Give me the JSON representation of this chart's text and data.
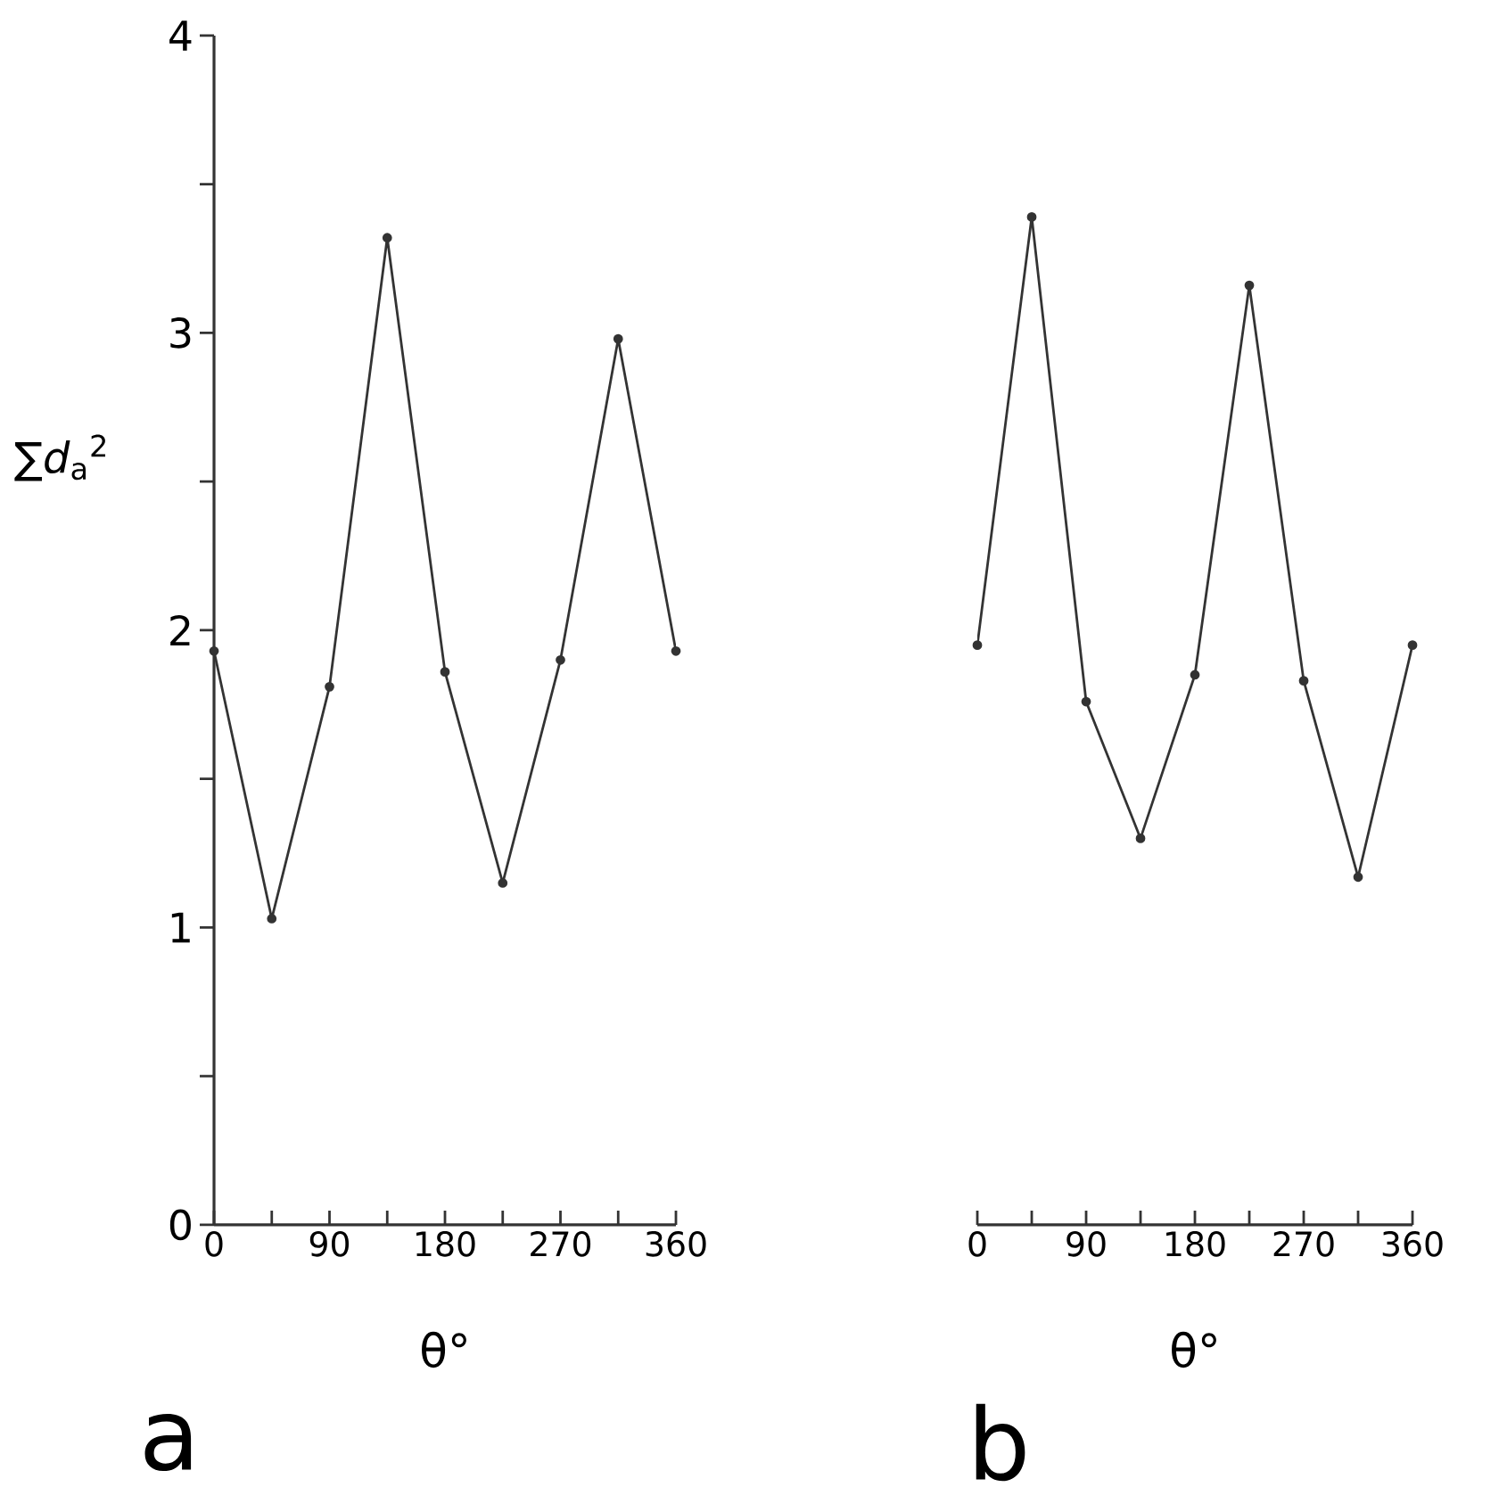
{
  "chart_data": [
    {
      "type": "line",
      "title": "a",
      "xlabel": "θ°",
      "ylabel": "∑*d*$_{a}$$^{2}$",
      "x": [
        0,
        45,
        90,
        135,
        180,
        225,
        270,
        315,
        360
      ],
      "values": [
        1.93,
        1.03,
        1.81,
        3.32,
        1.86,
        1.15,
        1.9,
        2.98,
        1.93
      ],
      "color": "#333333",
      "marker": "circle",
      "xlim": [
        0,
        360
      ],
      "xticks": [
        0,
        {
          "value": 45,
          "label": null
        },
        90,
        {
          "value": 135,
          "label": null
        },
        180,
        {
          "value": 225,
          "label": null
        },
        270,
        {
          "value": 315,
          "label": null
        },
        360
      ],
      "ylim": [
        0,
        4
      ],
      "yticks": [
        0,
        {
          "value": 0.5,
          "label": null
        },
        1,
        {
          "value": 1.5,
          "label": null
        },
        2,
        {
          "value": 2.5,
          "label": null
        },
        3,
        {
          "value": 3.5,
          "label": null
        },
        4
      ]
    },
    {
      "type": "line",
      "title": "b",
      "xlabel": "θ°",
      "x": [
        0,
        45,
        90,
        135,
        180,
        225,
        270,
        315,
        360
      ],
      "values": [
        1.95,
        3.39,
        1.76,
        1.3,
        1.85,
        3.16,
        1.83,
        1.17,
        1.95
      ],
      "color": "#333333",
      "marker": "circle",
      "xlim": [
        0,
        360
      ],
      "xticks": [
        0,
        {
          "value": 45,
          "label": null
        },
        90,
        {
          "value": 135,
          "label": null
        },
        180,
        {
          "value": 225,
          "label": null
        },
        270,
        {
          "value": 315,
          "label": null
        },
        360
      ],
      "ylim": [
        0,
        4
      ],
      "tick_labels": "x"
    }
  ]
}
